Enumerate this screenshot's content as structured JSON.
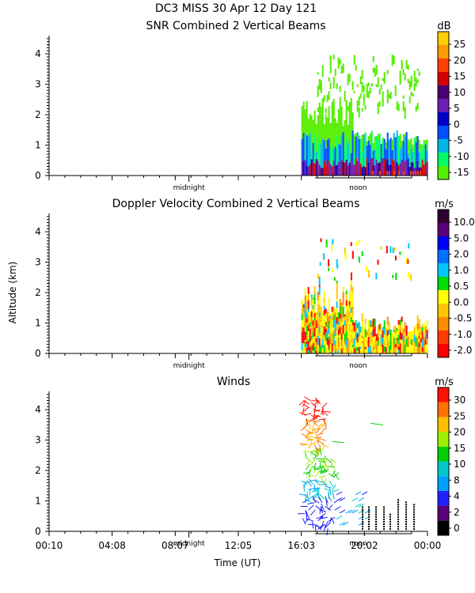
{
  "page": {
    "title_line1": "DC3 MISS  30 Apr 12 Day 121",
    "x_label": "Time (UT)",
    "y_label": "Altitude (km)",
    "x_tick_labels": [
      "00:10",
      "04:08",
      "08:07",
      "12:05",
      "16:03",
      "20:02",
      "00:00"
    ],
    "midnight_label": "midnight",
    "noon_label": "noon"
  },
  "colors": {
    "snr": [
      "#55ee00",
      "#00ff66",
      "#00b8e8",
      "#0050ff",
      "#0000cc",
      "#6a1fb5",
      "#4b0072",
      "#d60000",
      "#ff4000",
      "#ff9a00",
      "#ffd000"
    ],
    "doppler": [
      "#ff0000",
      "#ff3a00",
      "#ff8c00",
      "#ffc800",
      "#ffff00",
      "#00dd00",
      "#00c8ff",
      "#0070ff",
      "#0000ff",
      "#5a007a",
      "#300030"
    ],
    "winds": [
      "#000000",
      "#5a007a",
      "#2020ff",
      "#00a0ff",
      "#00c8c8",
      "#00d000",
      "#a0f000",
      "#ffc000",
      "#ff7000",
      "#ff1000"
    ]
  },
  "chart_data": [
    {
      "type": "heatmap",
      "title": "SNR Combined 2 Vertical Beams",
      "xlabel": "",
      "ylabel": "",
      "xlim": [
        0,
        24
      ],
      "ylim": [
        0,
        4.6
      ],
      "yticks": [
        0,
        1,
        2,
        3,
        4
      ],
      "data_start_hour": 16.0,
      "colorbar": {
        "unit": "dB",
        "tick_labels": [
          "25",
          "20",
          "15",
          "10",
          "5",
          "0",
          "-5",
          "-10",
          "-15"
        ]
      },
      "profile": [
        {
          "max_km": 0.5,
          "level": "strong"
        },
        {
          "max_km": 1.3,
          "level": "moderate"
        },
        {
          "max_km": 4.0,
          "level": "weak"
        }
      ]
    },
    {
      "type": "heatmap",
      "title": "Doppler Velocity Combined 2 Vertical Beams",
      "xlabel": "",
      "ylabel": "Altitude (km)",
      "xlim": [
        0,
        24
      ],
      "ylim": [
        0,
        4.6
      ],
      "yticks": [
        0,
        1,
        2,
        3,
        4
      ],
      "data_start_hour": 16.0,
      "colorbar": {
        "unit": "m/s",
        "tick_labels": [
          "10.0",
          "5.0",
          "2.0",
          "1.0",
          "0.5",
          "0.0",
          "-0.5",
          "-1.0",
          "-2.0"
        ]
      }
    },
    {
      "type": "scatter",
      "title": "Winds",
      "xlabel": "Time (UT)",
      "ylabel": "",
      "xlim": [
        0,
        24
      ],
      "ylim": [
        0,
        4.6
      ],
      "yticks": [
        0,
        1,
        2,
        3,
        4
      ],
      "data_start_hour": 16.0,
      "colorbar": {
        "unit": "m/s",
        "tick_labels": [
          "30",
          "25",
          "20",
          "15",
          "10",
          "8",
          "4",
          "2",
          "0"
        ]
      }
    }
  ]
}
